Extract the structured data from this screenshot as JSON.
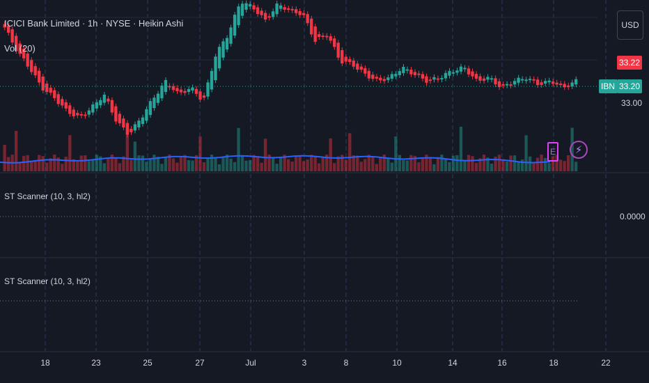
{
  "header": {
    "title": "ICICI Bank Limited · 1h · NYSE · Heikin Ashi",
    "volume_label": "Vol (20)"
  },
  "currency_button": "USD",
  "price_axis": {
    "last_price": "33.22",
    "symbol": "IBN",
    "symbol_price": "33.20",
    "tick_33": "33.00",
    "pane1_zero": "0.0000"
  },
  "indicator_panes": [
    {
      "label": "ST Scanner (10, 3, hl2)"
    },
    {
      "label": "ST Scanner (10, 3, hl2)"
    }
  ],
  "markers": {
    "earnings": "E",
    "dividend_icon": "lightning-icon"
  },
  "colors": {
    "bull": "#26a69a",
    "bear": "#f23645",
    "volume_ma": "#2962ff",
    "background": "#151924",
    "accent_marker": "#e040fb"
  },
  "chart_data": {
    "type": "candlestick",
    "title": "ICICI Bank Limited · 1h · NYSE · Heikin Ashi",
    "x_ticks": [
      "18",
      "23",
      "25",
      "27",
      "Jul",
      "3",
      "8",
      "10",
      "14",
      "16",
      "18",
      "22"
    ],
    "y_ticks": [
      "33.00"
    ],
    "last_price": 33.22,
    "ha_close_path": [
      34.1,
      33.75,
      33.5,
      33.2,
      33.05,
      32.85,
      32.75,
      32.9,
      33.1,
      32.7,
      32.5,
      32.75,
      33.05,
      33.3,
      33.1,
      33.2,
      33.0,
      33.7,
      34.0,
      34.5,
      34.4,
      34.2,
      34.45,
      34.35,
      34.3,
      33.9,
      34.0,
      33.6,
      33.55,
      33.4,
      33.3,
      33.35,
      33.5,
      33.4,
      33.3,
      33.35,
      33.45,
      33.5,
      33.3,
      33.35,
      33.2,
      33.3,
      33.35,
      33.25,
      33.3,
      33.2,
      33.3
    ],
    "volume_ma_level": "low"
  }
}
